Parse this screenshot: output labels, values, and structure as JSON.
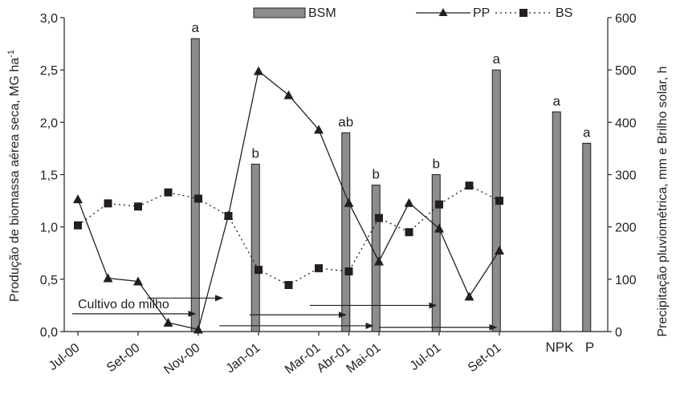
{
  "chart_data": {
    "type": "bar+line",
    "colors": {
      "bar_fill": "#8c8c8c",
      "bar_stroke": "#231f20",
      "line": "#231f20",
      "axis": "#231f20"
    },
    "y_left": {
      "label_main": "Produção de biomassa aérea seca, MG ha",
      "label_sup": "-1",
      "ticks": [
        "0,0",
        "0,5",
        "1,0",
        "1,5",
        "2,0",
        "2,5",
        "3,0"
      ],
      "tick_values": [
        0,
        0.5,
        1.0,
        1.5,
        2.0,
        2.5,
        3.0
      ],
      "ylim": [
        0,
        3
      ]
    },
    "y_right": {
      "label": "Precipitação pluviométrica, mm e Brilho solar, h",
      "ticks": [
        "0",
        "100",
        "200",
        "300",
        "400",
        "500",
        "600"
      ],
      "tick_values": [
        0,
        100,
        200,
        300,
        400,
        500,
        600
      ],
      "ylim": [
        0,
        600
      ]
    },
    "x_ticks": [
      {
        "label": "Jul-00",
        "x": 0
      },
      {
        "label": "Set-00",
        "x": 2
      },
      {
        "label": "Nov-00",
        "x": 4
      },
      {
        "label": "Jan-01",
        "x": 6
      },
      {
        "label": "Mar-01",
        "x": 8
      },
      {
        "label": "Abr-01",
        "x": 9
      },
      {
        "label": "Mai-01",
        "x": 10
      },
      {
        "label": "Jul-01",
        "x": 12
      },
      {
        "label": "Set-01",
        "x": 14
      }
    ],
    "extra_categories": [
      {
        "label": "NPK",
        "x": 16
      },
      {
        "label": "P",
        "x": 17
      }
    ],
    "xlim": [
      0,
      17.6
    ],
    "legend": {
      "bsm": "BSM",
      "pp": "PP",
      "bs": "BS",
      "placement": "top"
    },
    "bars": {
      "name": "BSM",
      "axis": "left",
      "points": [
        {
          "x": 3.9,
          "value": 2.8,
          "letter": "a"
        },
        {
          "x": 5.9,
          "value": 1.6,
          "letter": "b"
        },
        {
          "x": 8.9,
          "value": 1.9,
          "letter": "ab"
        },
        {
          "x": 9.9,
          "value": 1.4,
          "letter": "b"
        },
        {
          "x": 11.9,
          "value": 1.5,
          "letter": "b"
        },
        {
          "x": 13.9,
          "value": 2.5,
          "letter": "a"
        },
        {
          "x": 15.9,
          "value": 2.1,
          "letter": "a"
        },
        {
          "x": 16.9,
          "value": 1.8,
          "letter": "a"
        }
      ]
    },
    "series": [
      {
        "name": "PP",
        "axis": "right",
        "style": "solid",
        "marker": "triangle",
        "points": [
          [
            0,
            253
          ],
          [
            1,
            102
          ],
          [
            2,
            96
          ],
          [
            3,
            17
          ],
          [
            4,
            4
          ],
          [
            5,
            222
          ],
          [
            6,
            498
          ],
          [
            7,
            452
          ],
          [
            8,
            386
          ],
          [
            9,
            246
          ],
          [
            10,
            134
          ],
          [
            11,
            246
          ],
          [
            12,
            197
          ],
          [
            13,
            67
          ],
          [
            14,
            155
          ]
        ]
      },
      {
        "name": "BS",
        "axis": "right",
        "style": "dotted",
        "marker": "square",
        "points": [
          [
            0,
            203
          ],
          [
            1,
            245
          ],
          [
            2,
            239
          ],
          [
            3,
            266
          ],
          [
            4,
            254
          ],
          [
            5,
            221
          ],
          [
            6,
            118
          ],
          [
            7,
            89
          ],
          [
            8,
            121
          ],
          [
            9,
            115
          ],
          [
            10,
            217
          ],
          [
            11,
            190
          ],
          [
            12,
            243
          ],
          [
            13,
            279
          ],
          [
            14,
            250
          ]
        ]
      }
    ],
    "annotation": {
      "text": "Cultivo do milho",
      "arrows": [
        {
          "x1": 0,
          "x2": 3.9,
          "y": 0.17,
          "label": true
        },
        {
          "x1": 2.3,
          "x2": 4.8,
          "y": 0.32
        },
        {
          "x1": 5.7,
          "x2": 8.9,
          "y": 0.16
        },
        {
          "x1": 4.7,
          "x2": 9.8,
          "y": 0.055
        },
        {
          "x1": 7.7,
          "x2": 11.9,
          "y": 0.25
        },
        {
          "x1": 10.0,
          "x2": 13.9,
          "y": 0.04
        }
      ]
    }
  }
}
